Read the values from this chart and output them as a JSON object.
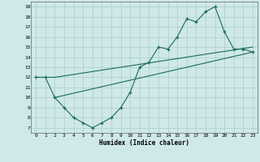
{
  "xlabel": "Humidex (Indice chaleur)",
  "bg_color": "#cfe8e8",
  "grid_color": "#aacccc",
  "line_color": "#1a6b5a",
  "xlim": [
    -0.5,
    23.5
  ],
  "ylim": [
    6.5,
    19.5
  ],
  "xticks": [
    0,
    1,
    2,
    3,
    4,
    5,
    6,
    7,
    8,
    9,
    10,
    11,
    12,
    13,
    14,
    15,
    16,
    17,
    18,
    19,
    20,
    21,
    22,
    23
  ],
  "yticks": [
    7,
    8,
    9,
    10,
    11,
    12,
    13,
    14,
    15,
    16,
    17,
    18,
    19
  ],
  "line1_x": [
    0,
    1,
    2,
    3,
    4,
    5,
    6,
    7,
    8,
    9,
    10,
    11,
    12,
    13,
    14,
    15,
    16,
    17,
    18,
    19,
    20,
    21,
    22,
    23
  ],
  "line1_y": [
    12,
    12,
    10,
    9,
    8,
    7.5,
    7,
    7.5,
    8,
    9,
    10.5,
    13,
    13.5,
    15,
    14.8,
    16,
    17.8,
    17.5,
    18.5,
    19,
    16.5,
    14.8,
    14.8,
    14.5
  ],
  "line2_x": [
    0,
    1,
    2,
    23
  ],
  "line2_y": [
    12,
    12,
    12,
    15
  ],
  "line3_x": [
    2,
    23
  ],
  "line3_y": [
    10,
    14.5
  ]
}
